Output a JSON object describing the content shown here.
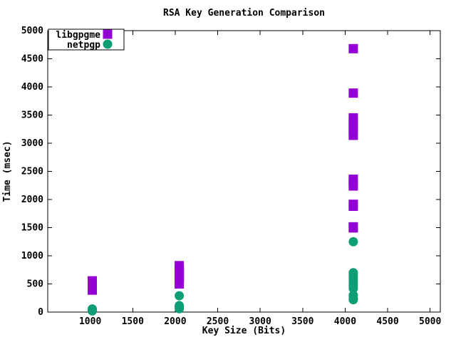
{
  "colors": {
    "background": "#ffffff",
    "foreground": "#000000",
    "libgpgme": "#9400D3",
    "netpgp": "#0D9E76"
  },
  "chart_data": {
    "type": "scatter",
    "title": "RSA Key Generation Comparison",
    "xlabel": "Key Size (Bits)",
    "ylabel": "Time (msec)",
    "grid": false,
    "legend_position": "top-left",
    "x_axis": {
      "label": "Key Size (Bits)",
      "min": 500,
      "max": 5120,
      "ticks": [
        1000,
        1500,
        2000,
        2500,
        3000,
        3500,
        4000,
        4500,
        5000
      ]
    },
    "y_axis": {
      "label": "Time (msec)",
      "min": 0,
      "max": 5000,
      "ticks": [
        0,
        500,
        1000,
        1500,
        2000,
        2500,
        3000,
        3500,
        4000,
        4500,
        5000
      ]
    },
    "series": [
      {
        "name": "libgpgme",
        "marker": "square",
        "color": "#9400D3",
        "clusters": [
          {
            "x": 1024,
            "values": [
              390,
              420,
              455,
              490,
              525,
              555
            ]
          },
          {
            "x": 2048,
            "values": [
              500,
              545,
              590,
              635,
              680,
              725,
              770,
              825
            ]
          },
          {
            "x": 4096,
            "values": [
              1495,
              1515,
              1880,
              1915,
              2240,
              2300,
              2360,
              3140,
              3220,
              3300,
              3380,
              3450,
              3890,
              4680
            ]
          }
        ]
      },
      {
        "name": "netpgp",
        "marker": "circle",
        "color": "#0D9E76",
        "clusters": [
          {
            "x": 1024,
            "values": [
              20,
              35,
              55
            ]
          },
          {
            "x": 2048,
            "values": [
              60,
              90,
              115,
              290
            ]
          },
          {
            "x": 4096,
            "values": [
              220,
              250,
              300,
              420,
              460,
              500,
              550,
              600,
              650,
              700,
              1250
            ]
          }
        ]
      }
    ]
  }
}
